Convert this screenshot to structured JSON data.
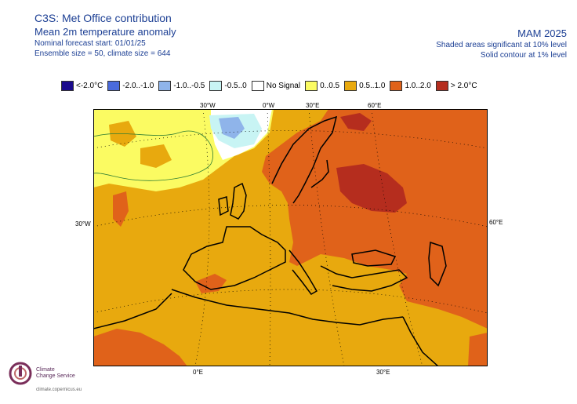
{
  "header": {
    "title": "C3S: Met Office contribution",
    "subtitle": "Mean 2m temperature anomaly",
    "forecast_start": "Nominal forecast start: 01/01/25",
    "ensemble": "Ensemble size = 50, climate size = 644",
    "season": "MAM 2025",
    "significance_shaded": "Shaded areas significant at 10% level",
    "significance_contour": "Solid contour at 1% level"
  },
  "legend": [
    {
      "label": "<-2.0°C",
      "color": "#1a0a8c"
    },
    {
      "label": "-2.0..-1.0",
      "color": "#4a6bdc"
    },
    {
      "label": "-1.0..-0.5",
      "color": "#8fb4ea"
    },
    {
      "label": "-0.5..0",
      "color": "#c8f4f4"
    },
    {
      "label": "No Signal",
      "color": "#ffffff"
    },
    {
      "label": "0..0.5",
      "color": "#fbfb62"
    },
    {
      "label": "0.5..1.0",
      "color": "#e8a90e"
    },
    {
      "label": "1.0..2.0",
      "color": "#e0621a"
    },
    {
      "label": "> 2.0°C",
      "color": "#b52d1e"
    }
  ],
  "axes": {
    "top_30w": "30°W",
    "top_0w": "0°W",
    "top_30e": "30°E",
    "top_60e": "60°E",
    "left_30w": "30°W",
    "right_60e": "60°E",
    "bottom_0e": "0°E",
    "bottom_30e": "30°E"
  },
  "logo": {
    "line1": "Climate",
    "line2": "Change Service",
    "url": "climate.copernicus.eu"
  }
}
